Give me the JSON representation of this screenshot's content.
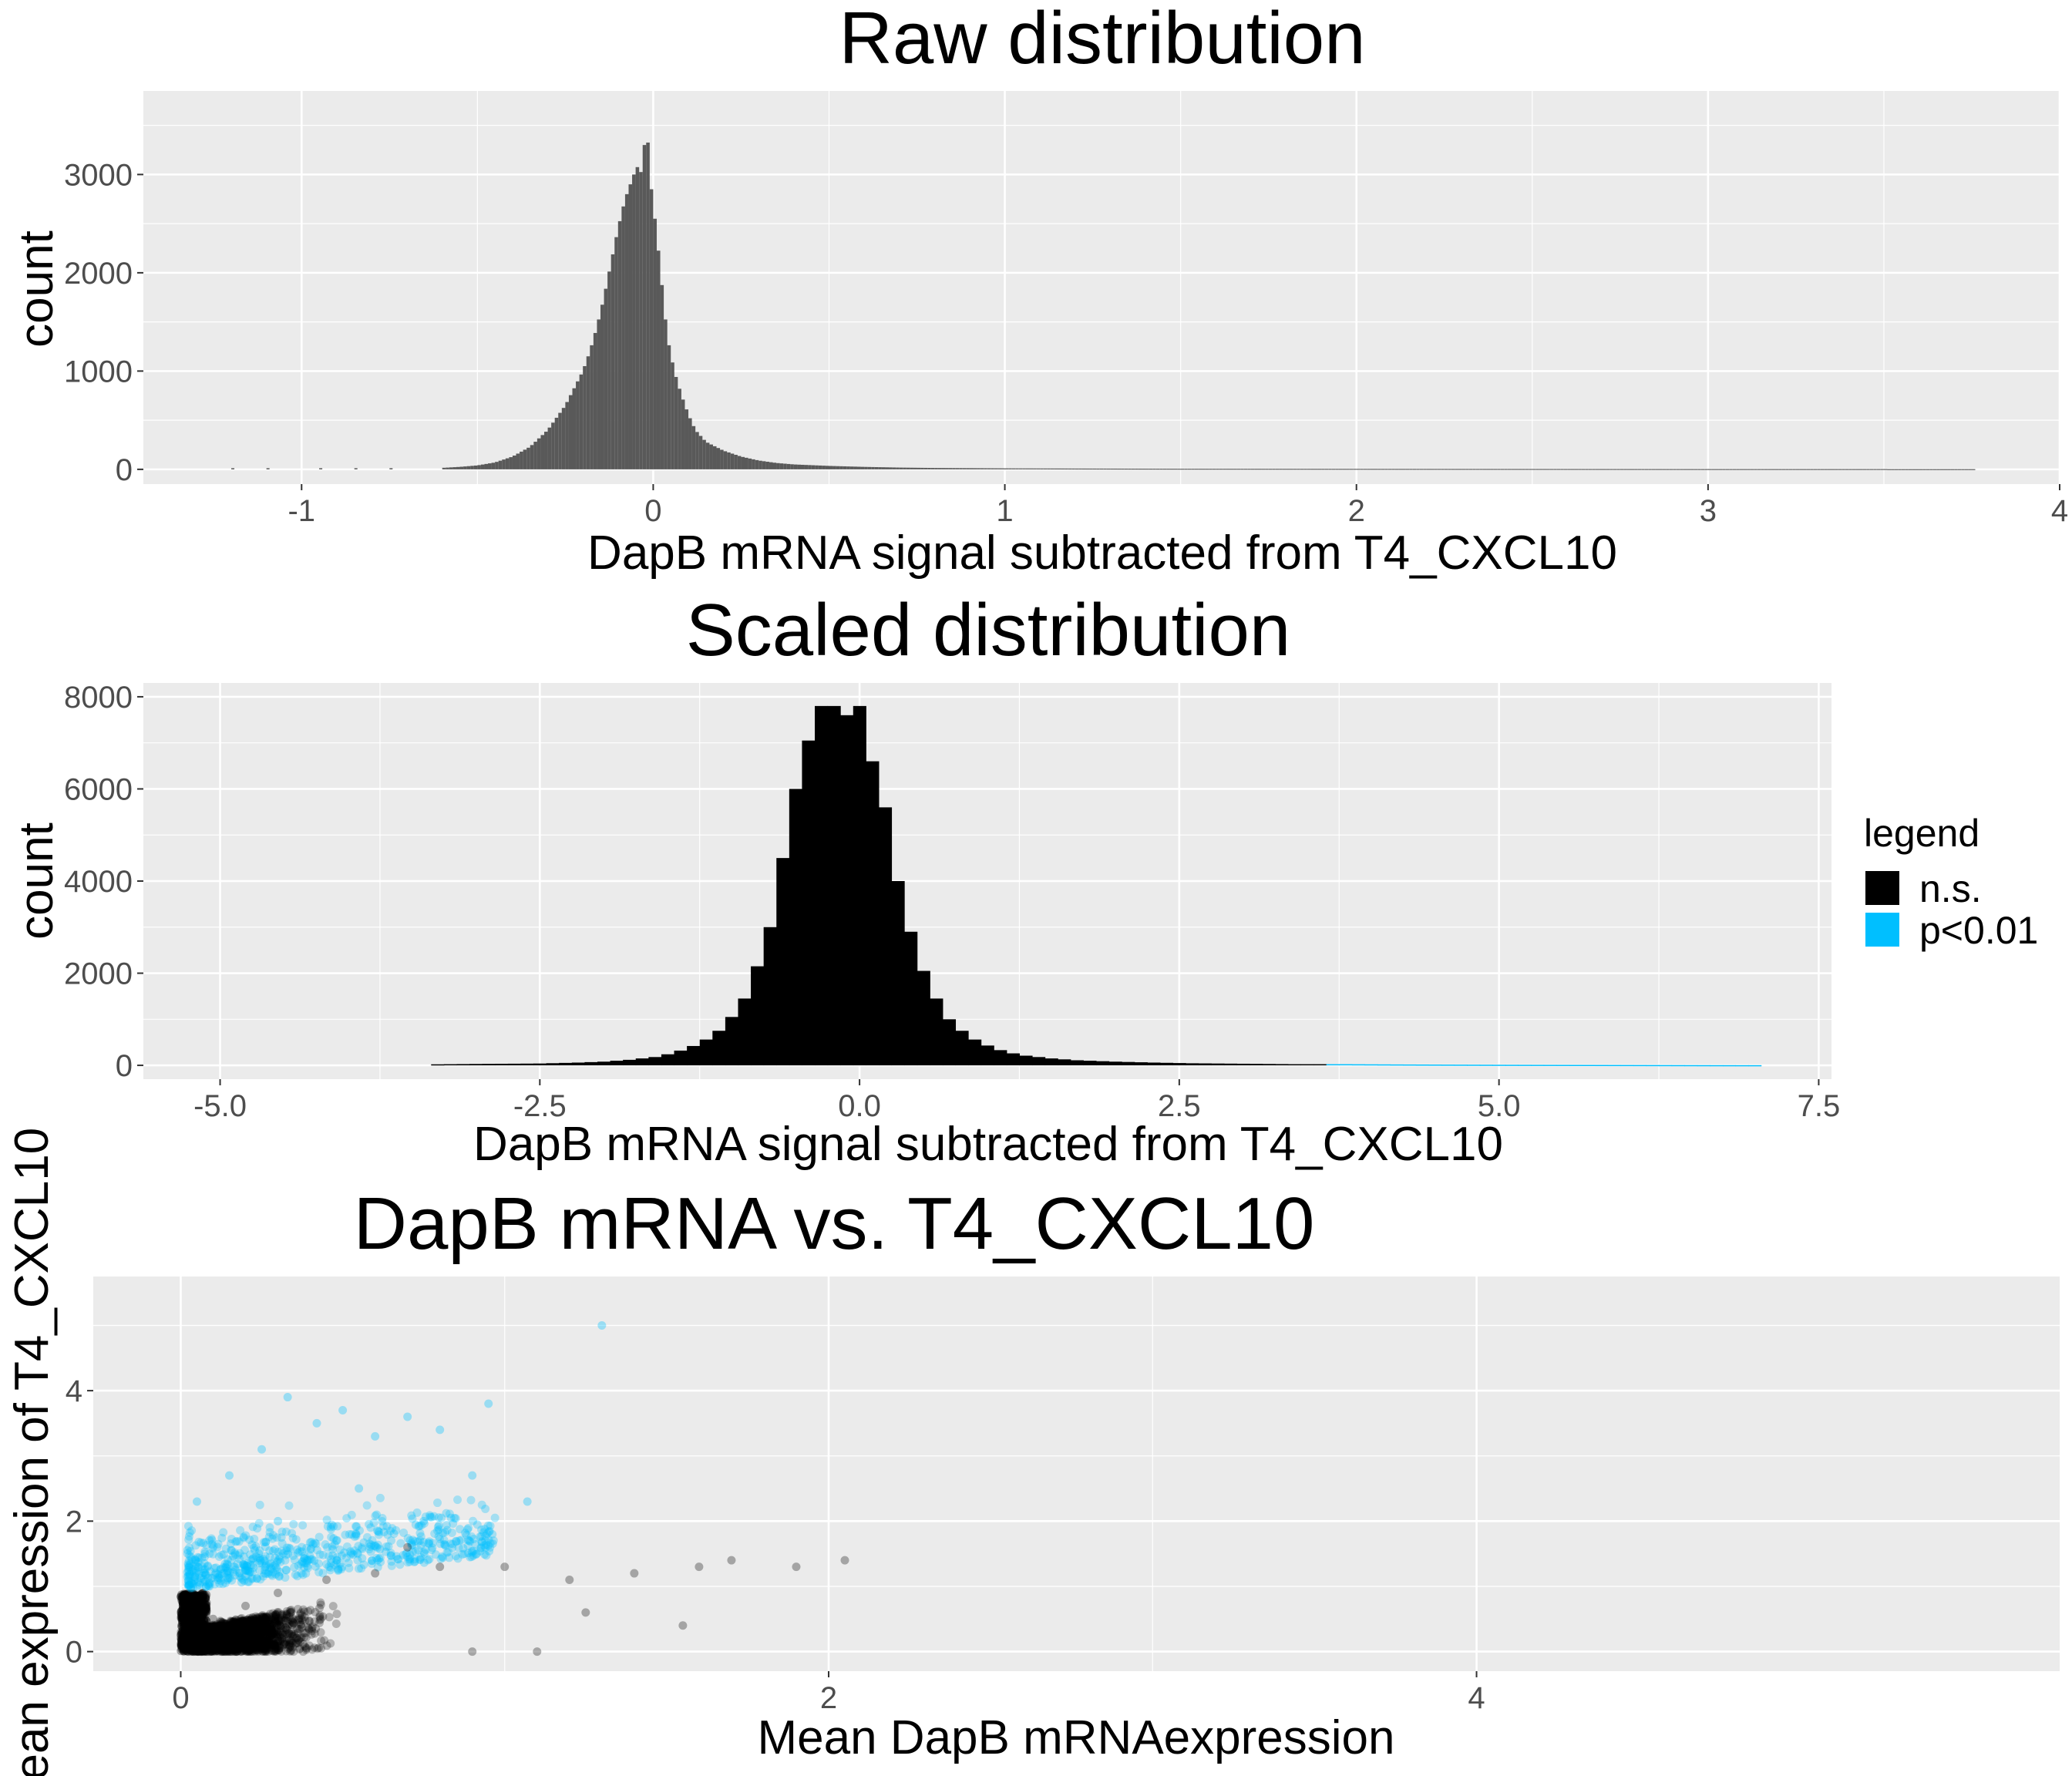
{
  "colors": {
    "panel_bg": "#ebebeb",
    "grid": "#ffffff",
    "raw_bar": "#595959",
    "ns": "#000000",
    "sig": "#00bfff"
  },
  "chart_data": [
    {
      "type": "bar",
      "title": "Raw distribution",
      "xlabel": "DapB mRNA signal subtracted from T4_CXCL10",
      "ylabel": "count",
      "xlim": [
        -1.45,
        4.0
      ],
      "ylim": [
        -150,
        3850
      ],
      "x_ticks": [
        -1,
        0,
        1,
        2,
        3,
        4
      ],
      "x_tick_labels": [
        "-1",
        "0",
        "1",
        "2",
        "3",
        "4"
      ],
      "y_ticks": [
        0,
        1000,
        2000,
        3000
      ],
      "y_tick_labels": [
        "0",
        "1000",
        "2000",
        "3000"
      ],
      "grid": true,
      "bins": {
        "x": [
          -0.6,
          -0.55,
          -0.5,
          -0.45,
          -0.4,
          -0.35,
          -0.3,
          -0.25,
          -0.2,
          -0.18,
          -0.16,
          -0.14,
          -0.12,
          -0.1,
          -0.08,
          -0.06,
          -0.05,
          -0.04,
          -0.03,
          -0.02,
          -0.01,
          0.0,
          0.01,
          0.02,
          0.03,
          0.04,
          0.06,
          0.08,
          0.1,
          0.12,
          0.15,
          0.2,
          0.25,
          0.3,
          0.35,
          0.4,
          0.5,
          0.6,
          0.7,
          0.8,
          1.0,
          1.2,
          1.5,
          2.0,
          2.5,
          3.0,
          3.5
        ],
        "count": [
          15,
          25,
          40,
          70,
          130,
          230,
          400,
          650,
          1000,
          1200,
          1450,
          1750,
          2100,
          2450,
          2750,
          2950,
          3050,
          3100,
          2950,
          3650,
          3000,
          2700,
          2400,
          2050,
          1700,
          1350,
          1000,
          760,
          560,
          400,
          280,
          190,
          130,
          90,
          65,
          50,
          35,
          25,
          18,
          14,
          10,
          8,
          6,
          5,
          4,
          3,
          3
        ]
      },
      "bin_width": 0.01
    },
    {
      "type": "bar",
      "title": "Scaled distribution",
      "xlabel": "DapB mRNA signal subtracted from T4_CXCL10",
      "ylabel": "count",
      "xlim": [
        -5.6,
        7.6
      ],
      "ylim": [
        -300,
        8300
      ],
      "x_ticks": [
        -5,
        -2.5,
        0,
        2.5,
        5,
        7.5
      ],
      "x_tick_labels": [
        "-5.0",
        "-2.5",
        "0.0",
        "2.5",
        "5.0",
        "7.5"
      ],
      "y_ticks": [
        0,
        2000,
        4000,
        6000,
        8000
      ],
      "y_tick_labels": [
        "0",
        "2000",
        "4000",
        "6000",
        "8000"
      ],
      "grid": true,
      "bin_width": 0.1,
      "series": [
        {
          "name": "n.s.",
          "color": "#000000",
          "x": [
            -3.4,
            -3.0,
            -2.5,
            -2.2,
            -2.0,
            -1.8,
            -1.6,
            -1.5,
            -1.4,
            -1.3,
            -1.2,
            -1.1,
            -1.0,
            -0.9,
            -0.8,
            -0.7,
            -0.6,
            -0.5,
            -0.4,
            -0.3,
            -0.2,
            -0.1,
            0.0,
            0.1,
            0.2,
            0.3,
            0.4,
            0.5,
            0.6,
            0.7,
            0.8,
            0.9,
            1.0,
            1.1,
            1.2,
            1.3,
            1.5,
            1.7,
            2.0,
            2.3,
            2.6,
            3.0,
            3.4
          ],
          "count": [
            20,
            30,
            40,
            60,
            80,
            120,
            180,
            240,
            320,
            420,
            560,
            750,
            1050,
            1450,
            2150,
            3000,
            4500,
            6000,
            7050,
            7800,
            7800,
            7600,
            7800,
            6600,
            5600,
            4000,
            2900,
            2050,
            1450,
            1000,
            750,
            560,
            430,
            330,
            260,
            210,
            150,
            110,
            80,
            60,
            45,
            35,
            25
          ]
        },
        {
          "name": "p<0.01",
          "color": "#00bfff",
          "x": [
            3.8,
            4.2,
            4.6,
            5.0,
            5.4,
            5.8,
            6.2,
            6.6,
            6.9
          ],
          "count": [
            25,
            20,
            16,
            13,
            11,
            9,
            7,
            5,
            4
          ]
        }
      ],
      "legend": {
        "title": "legend",
        "position": "right",
        "entries": [
          "n.s.",
          "p<0.01"
        ]
      }
    },
    {
      "type": "scatter",
      "title": "DapB mRNA vs. T4_CXCL10",
      "xlabel": "Mean DapB mRNAexpression",
      "ylabel": "Mean expression of T4_CXCL10",
      "xlim": [
        -0.27,
        5.8
      ],
      "ylim": [
        -0.3,
        5.75
      ],
      "x_ticks": [
        0,
        2,
        4
      ],
      "x_tick_labels": [
        "0",
        "2",
        "4"
      ],
      "y_ticks": [
        0,
        2,
        4
      ],
      "y_tick_labels": [
        "0",
        "2",
        "4"
      ],
      "grid": true,
      "series": [
        {
          "name": "n.s.",
          "color": "#000000",
          "opacity": 0.25
        },
        {
          "name": "p<0.01",
          "color": "#00bfff",
          "opacity": 0.3
        }
      ],
      "points": {
        "ns": [
          [
            0.02,
            0.1
          ],
          [
            0.05,
            0.3
          ],
          [
            0.1,
            0.5
          ],
          [
            0.2,
            0.7
          ],
          [
            0.3,
            0.9
          ],
          [
            0.45,
            1.1
          ],
          [
            0.6,
            1.2
          ],
          [
            0.8,
            1.3
          ],
          [
            1.0,
            1.3
          ],
          [
            1.2,
            1.1
          ],
          [
            1.4,
            1.2
          ],
          [
            1.6,
            1.3
          ],
          [
            1.7,
            1.4
          ],
          [
            1.9,
            1.3
          ],
          [
            2.05,
            1.4
          ],
          [
            1.1,
            0.0
          ],
          [
            0.9,
            0.0
          ],
          [
            1.25,
            0.6
          ],
          [
            1.55,
            0.4
          ],
          [
            0.7,
            1.6
          ]
        ],
        "sig": [
          [
            0.05,
            2.3
          ],
          [
            0.15,
            2.7
          ],
          [
            0.25,
            3.1
          ],
          [
            0.33,
            3.9
          ],
          [
            0.42,
            3.5
          ],
          [
            0.5,
            3.7
          ],
          [
            0.6,
            3.3
          ],
          [
            0.7,
            3.6
          ],
          [
            0.8,
            3.4
          ],
          [
            0.95,
            3.8
          ],
          [
            0.9,
            2.7
          ],
          [
            1.07,
            2.3
          ],
          [
            1.3,
            5.0
          ],
          [
            0.3,
            2.0
          ],
          [
            0.55,
            2.5
          ],
          [
            0.75,
            2.0
          ]
        ]
      }
    }
  ]
}
